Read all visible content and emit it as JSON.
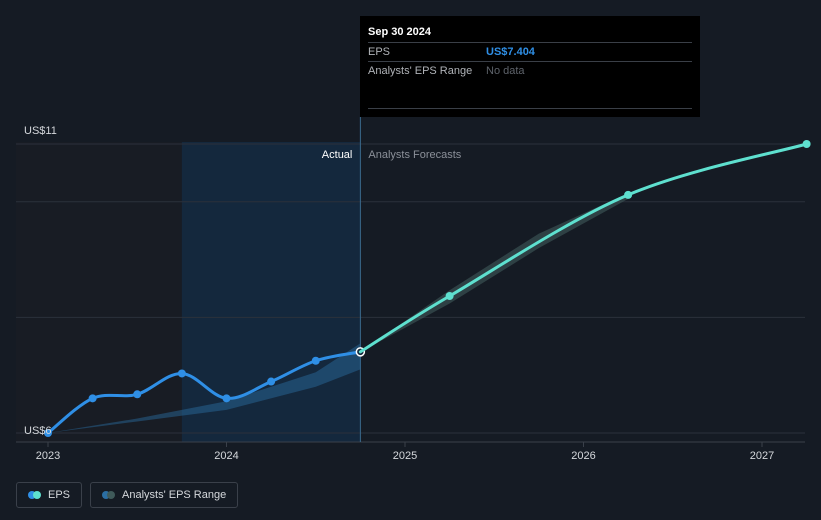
{
  "chart_data": {
    "type": "line",
    "x_ticks": [
      "2023",
      "2024",
      "2025",
      "2026",
      "2027"
    ],
    "y_ticks": [
      "US$6",
      "US$11"
    ],
    "ylim": [
      6,
      11
    ],
    "divider_labels": {
      "actual": "Actual",
      "forecast": "Analysts Forecasts"
    },
    "series": [
      {
        "name": "EPS",
        "color": "#2f8fe6",
        "points": [
          {
            "x": 2023.0,
            "y": 6.0
          },
          {
            "x": 2023.25,
            "y": 6.6
          },
          {
            "x": 2023.5,
            "y": 6.67
          },
          {
            "x": 2023.75,
            "y": 7.03
          },
          {
            "x": 2024.0,
            "y": 6.6
          },
          {
            "x": 2024.25,
            "y": 6.89
          },
          {
            "x": 2024.5,
            "y": 7.25
          },
          {
            "x": 2024.75,
            "y": 7.404
          }
        ]
      },
      {
        "name": "EPS (forecast)",
        "color": "#5ee0cf",
        "points": [
          {
            "x": 2024.75,
            "y": 7.404
          },
          {
            "x": 2025.25,
            "y": 8.37
          },
          {
            "x": 2026.25,
            "y": 10.12
          },
          {
            "x": 2027.25,
            "y": 11.0
          }
        ]
      }
    ],
    "ranges": [
      {
        "name": "Analysts' EPS Range",
        "color": "#2b6ea3",
        "upper": [
          {
            "x": 2023.0,
            "y": 6.0
          },
          {
            "x": 2023.5,
            "y": 6.25
          },
          {
            "x": 2024.0,
            "y": 6.55
          },
          {
            "x": 2024.5,
            "y": 7.05
          },
          {
            "x": 2024.75,
            "y": 7.55
          }
        ],
        "lower": [
          {
            "x": 2023.0,
            "y": 6.0
          },
          {
            "x": 2023.5,
            "y": 6.2
          },
          {
            "x": 2024.0,
            "y": 6.4
          },
          {
            "x": 2024.5,
            "y": 6.8
          },
          {
            "x": 2024.75,
            "y": 7.1
          }
        ]
      },
      {
        "name": "forecast range",
        "color": "#3f5a5a",
        "upper": [
          {
            "x": 2024.75,
            "y": 7.4
          },
          {
            "x": 2025.25,
            "y": 8.47
          },
          {
            "x": 2025.75,
            "y": 9.45
          },
          {
            "x": 2026.25,
            "y": 10.15
          }
        ],
        "lower": [
          {
            "x": 2024.75,
            "y": 7.4
          },
          {
            "x": 2025.25,
            "y": 8.24
          },
          {
            "x": 2025.75,
            "y": 9.2
          },
          {
            "x": 2026.25,
            "y": 10.05
          }
        ]
      }
    ],
    "highlight": {
      "from_x": 2023.75,
      "to_x": 2024.75
    }
  },
  "tooltip": {
    "date": "Sep 30 2024",
    "rows": [
      {
        "label": "EPS",
        "value": "US$7.404"
      },
      {
        "label": "Analysts' EPS Range",
        "value": "No data"
      }
    ]
  },
  "legend": {
    "items": [
      {
        "label": "EPS",
        "color_a": "#2f8fe6",
        "color_b": "#5ee0cf"
      },
      {
        "label": "Analysts' EPS Range",
        "color_a": "#2b6ea3",
        "color_b": "#3f5a5a"
      }
    ]
  }
}
